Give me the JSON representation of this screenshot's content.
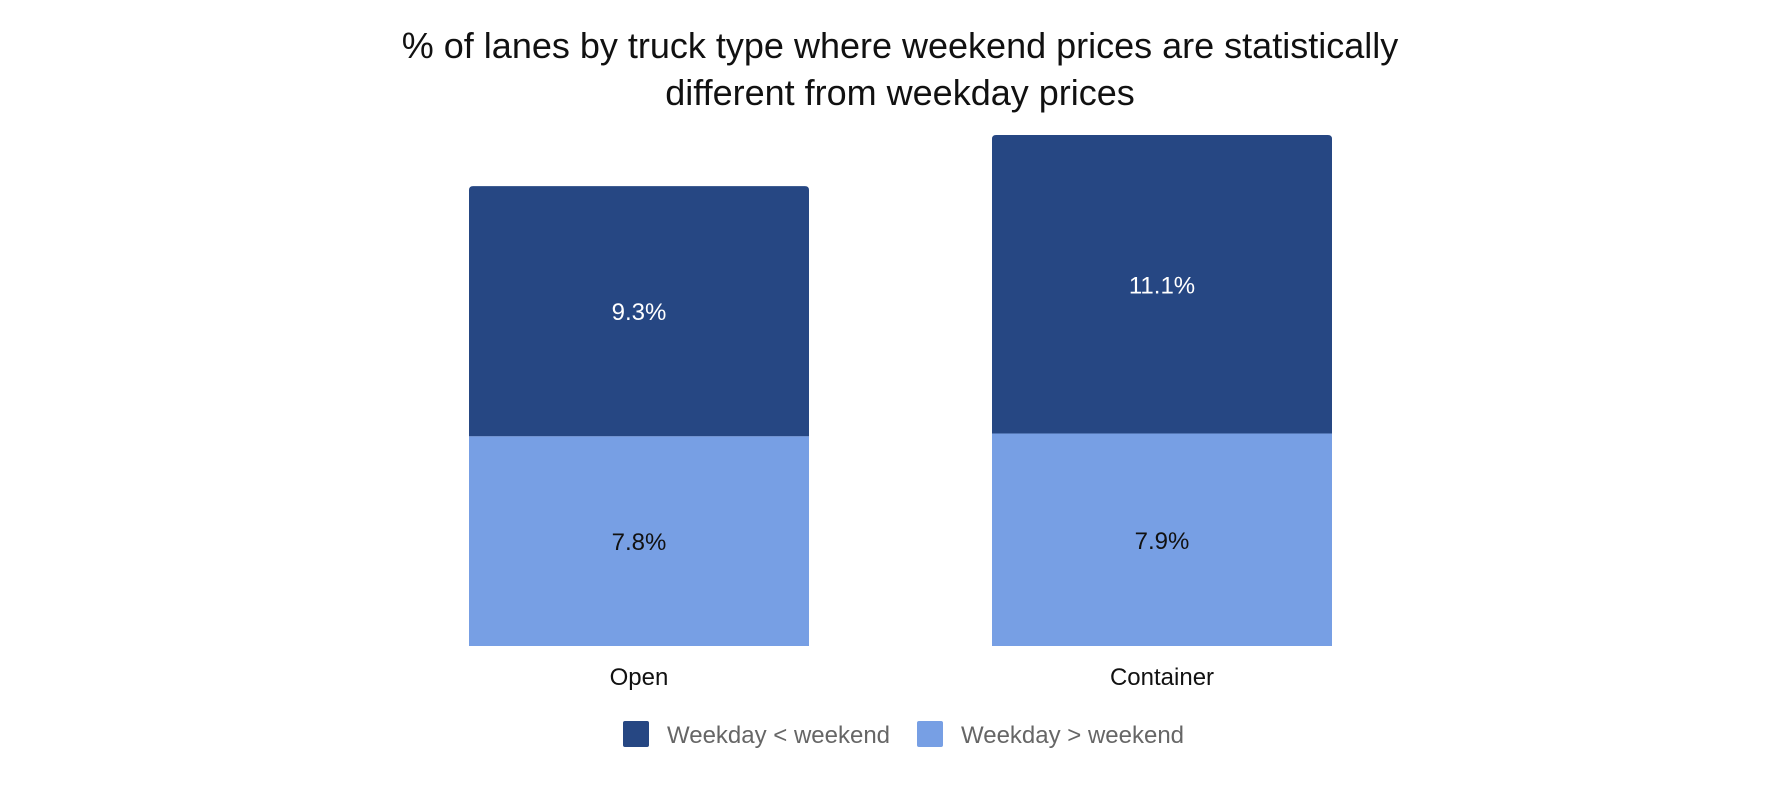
{
  "chart_data": {
    "type": "bar",
    "stacked": true,
    "title_lines": [
      "% of lanes by truck type where weekend prices are statistically",
      "different from weekday prices"
    ],
    "categories": [
      "Open",
      "Container"
    ],
    "series": [
      {
        "name": "Weekday > weekend",
        "values": [
          7.8,
          7.9
        ],
        "labels": [
          "7.8%",
          "7.9%"
        ],
        "color": "#779fe4",
        "label_color": "#111111"
      },
      {
        "name": "Weekday < weekend",
        "values": [
          9.3,
          11.1
        ],
        "labels": [
          "9.3%",
          "11.1%"
        ],
        "color": "#264783",
        "label_color": "#ffffff"
      }
    ],
    "legend": {
      "position": "bottom",
      "items": [
        {
          "label": "Weekday < weekend",
          "color": "#264783"
        },
        {
          "label": "Weekday > weekend",
          "color": "#779fe4"
        }
      ]
    },
    "ylim": [
      0,
      19
    ],
    "grid": false,
    "xlabel": "",
    "ylabel": ""
  }
}
